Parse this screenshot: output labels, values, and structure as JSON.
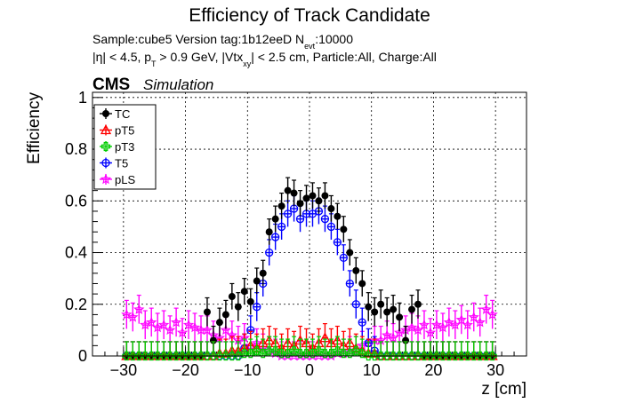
{
  "title": "Efficiency of Track Candidate",
  "info_line1": {
    "pre": "Sample:cube5   Version tag:1b12eeD  N",
    "sub": "evt",
    "post": ":10000"
  },
  "info_line2": {
    "p1": "|η| < 4.5, p",
    "p1_sub": "T",
    "p2": " > 0.9 GeV, |Vtx",
    "p2_sub": "xy",
    "p3": "| < 2.5 cm, Particle:All, Charge:All"
  },
  "cms_label": "CMS",
  "cms_sub": "Simulation",
  "chart_data": {
    "type": "scatter",
    "xlabel": "z [cm]",
    "ylabel": "Efficiency",
    "xlim": [
      -35,
      35
    ],
    "ylim": [
      0,
      1.02
    ],
    "xticks": [
      -30,
      -20,
      -10,
      0,
      10,
      20,
      30
    ],
    "xtick_labels": [
      "−30",
      "−20",
      "−10",
      "0",
      "10",
      "20",
      "30"
    ],
    "yticks": [
      0,
      0.2,
      0.4,
      0.6,
      0.8,
      1
    ],
    "ytick_labels": [
      "0",
      "0.2",
      "0.4",
      "0.6",
      "0.8",
      "1"
    ],
    "grid": true,
    "legend_position": "top-left",
    "x": [
      -29.5,
      -28.5,
      -27.5,
      -26.5,
      -25.5,
      -24.5,
      -23.5,
      -22.5,
      -21.5,
      -20.5,
      -19.5,
      -18.5,
      -17.5,
      -16.5,
      -15.5,
      -14.5,
      -13.5,
      -12.5,
      -11.5,
      -10.5,
      -9.5,
      -8.5,
      -7.5,
      -6.5,
      -5.5,
      -4.5,
      -3.5,
      -2.5,
      -1.5,
      -0.5,
      0.5,
      1.5,
      2.5,
      3.5,
      4.5,
      5.5,
      6.5,
      7.5,
      8.5,
      9.5,
      10.5,
      11.5,
      12.5,
      13.5,
      14.5,
      15.5,
      16.5,
      17.5,
      18.5,
      19.5,
      20.5,
      21.5,
      22.5,
      23.5,
      24.5,
      25.5,
      26.5,
      27.5,
      28.5,
      29.5
    ],
    "series": [
      {
        "name": "TC",
        "color": "#000000",
        "marker": "filled-circle",
        "values": [
          0,
          0,
          0,
          0,
          0,
          0,
          0,
          0,
          0,
          0,
          0,
          0,
          0,
          0.17,
          0.06,
          0.13,
          0.16,
          0.23,
          0.19,
          0.25,
          0.21,
          0.29,
          0.32,
          0.48,
          0.53,
          0.58,
          0.64,
          0.63,
          0.59,
          0.61,
          0.62,
          0.6,
          0.62,
          0.57,
          0.54,
          0.49,
          0.4,
          0.33,
          0.28,
          0.19,
          0.17,
          0.2,
          0.17,
          0.18,
          0.15,
          0.06,
          0.18,
          0.2,
          0,
          0,
          0,
          0,
          0,
          0,
          0,
          0,
          0,
          0,
          0,
          0
        ]
      },
      {
        "name": "pT5",
        "color": "#ff0000",
        "marker": "open-triangle",
        "values": [
          0,
          0,
          0,
          0,
          0,
          0,
          0,
          0,
          0,
          0,
          0,
          0,
          0,
          0,
          0,
          0.01,
          0.01,
          0.02,
          0.02,
          0.03,
          0.04,
          0.03,
          0.05,
          0.06,
          0.05,
          0.03,
          0.05,
          0.04,
          0.06,
          0.05,
          0.03,
          0.05,
          0.07,
          0.05,
          0.06,
          0.04,
          0.05,
          0.03,
          0.02,
          0.01,
          0.01,
          0,
          0,
          0,
          0,
          0,
          0,
          0,
          0,
          0,
          0,
          0,
          0,
          0,
          0,
          0,
          0,
          0,
          0,
          0
        ]
      },
      {
        "name": "pT3",
        "color": "#00cc00",
        "marker": "open-cross",
        "values": [
          0,
          0,
          0,
          0,
          0,
          0,
          0,
          0,
          0,
          0,
          0,
          0,
          0,
          0,
          0,
          0,
          0,
          0,
          0,
          0.01,
          0.01,
          0.02,
          0.01,
          0.02,
          0.02,
          0.01,
          0.01,
          0.02,
          0.01,
          0.01,
          0.01,
          0.02,
          0.01,
          0.01,
          0.02,
          0.01,
          0.01,
          0.02,
          0.01,
          0,
          0,
          0,
          0,
          0,
          0,
          0,
          0,
          0,
          0,
          0,
          0,
          0,
          0,
          0,
          0,
          0,
          0,
          0,
          0,
          0
        ]
      },
      {
        "name": "T5",
        "color": "#0000ff",
        "marker": "open-circle",
        "values": [
          0,
          0,
          0,
          0,
          0,
          0,
          0,
          0,
          0,
          0,
          0,
          0,
          0,
          0,
          0,
          0,
          0,
          0,
          0,
          0.03,
          0.1,
          0.19,
          0.28,
          0.4,
          0.46,
          0.5,
          0.55,
          0.57,
          0.53,
          0.55,
          0.55,
          0.56,
          0.53,
          0.5,
          0.44,
          0.38,
          0.28,
          0.2,
          0.13,
          0.05,
          0.02,
          0,
          0,
          0,
          0,
          0,
          0,
          0,
          0,
          0,
          0,
          0,
          0,
          0,
          0,
          0,
          0,
          0,
          0,
          0
        ]
      },
      {
        "name": "pLS",
        "color": "#ff00ff",
        "marker": "open-star",
        "values": [
          0.16,
          0.15,
          0.18,
          0.12,
          0.13,
          0.11,
          0.12,
          0.1,
          0.13,
          0.09,
          0.12,
          0.11,
          0.1,
          0.1,
          0.08,
          0.07,
          0.1,
          0.08,
          0.06,
          0.07,
          0.04,
          0.05,
          0.03,
          0.02,
          0.01,
          0,
          0,
          0,
          0,
          0,
          0,
          0,
          0,
          0,
          0.01,
          0.01,
          0.02,
          0.02,
          0.04,
          0.05,
          0.06,
          0.06,
          0.08,
          0.07,
          0.09,
          0.1,
          0.11,
          0.1,
          0.12,
          0.09,
          0.12,
          0.11,
          0.13,
          0.12,
          0.14,
          0.12,
          0.15,
          0.13,
          0.18,
          0.16
        ]
      }
    ]
  }
}
